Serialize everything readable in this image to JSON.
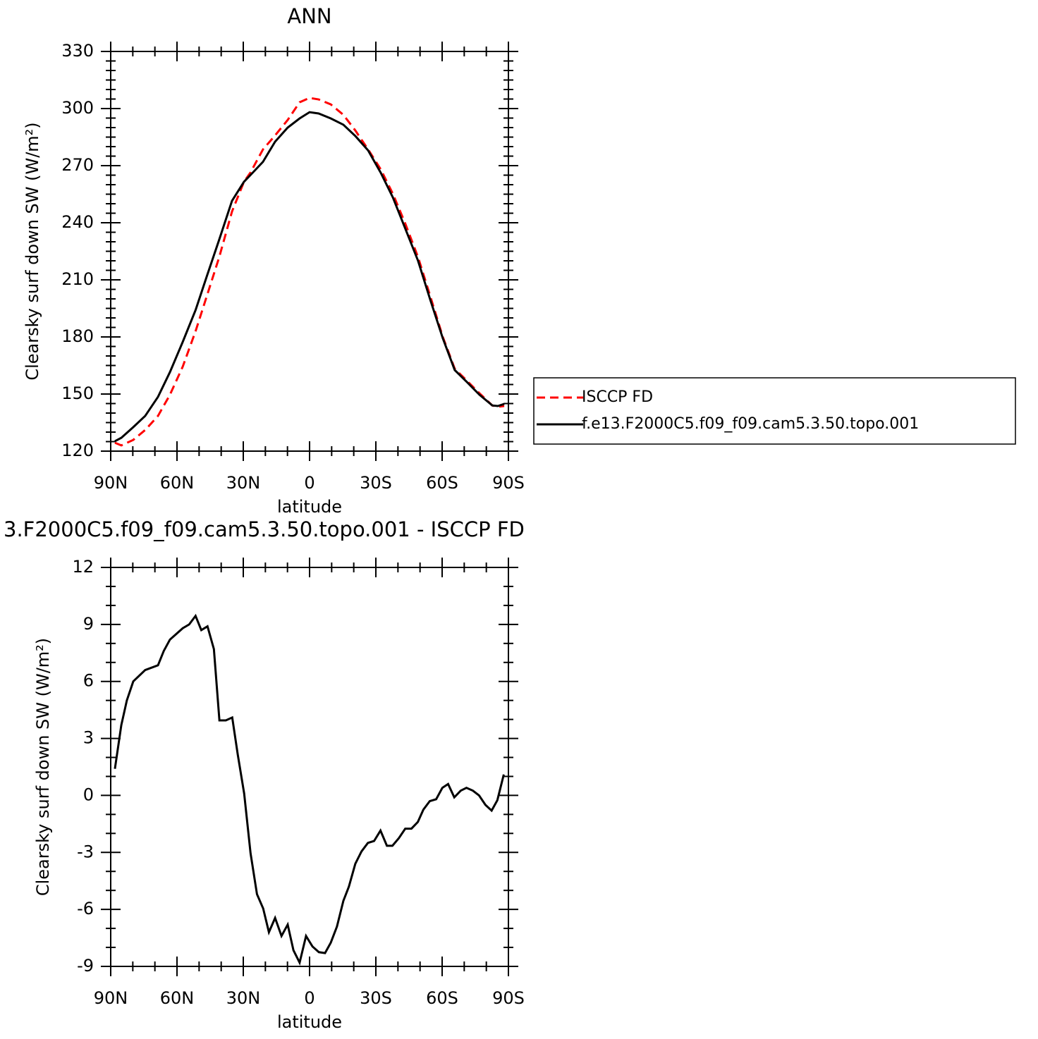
{
  "chart_data": [
    {
      "type": "line",
      "title": "ANN",
      "xlabel": "latitude",
      "ylabel": "Clearsky surf down SW (W/m²)",
      "xlim": [
        90,
        -90
      ],
      "xticks": [
        {
          "value": 90,
          "label": "90N"
        },
        {
          "value": 60,
          "label": "60N"
        },
        {
          "value": 30,
          "label": "30N"
        },
        0,
        {
          "value": -30,
          "label": "30S"
        },
        {
          "value": -60,
          "label": "60S"
        },
        {
          "value": -90,
          "label": "90S"
        }
      ],
      "ylim": [
        120,
        330
      ],
      "yticks": [
        120,
        150,
        180,
        210,
        240,
        270,
        300,
        330
      ],
      "legend": "right",
      "x": [
        88.1,
        85.2,
        79.8,
        74.4,
        68.6,
        63.2,
        57.4,
        51.6,
        46.3,
        40.9,
        35.1,
        29.7,
        26.8,
        21.1,
        15.6,
        9.9,
        4.5,
        0,
        -4.1,
        -9.6,
        -15.3,
        -20.7,
        -26.5,
        -32.2,
        -37.7,
        -43.4,
        -49.1,
        -54.6,
        -60.3,
        -65.7,
        -71.2,
        -76.9,
        -82.7,
        -85.2,
        -88.1
      ],
      "series": [
        {
          "name": "ISCCP FD",
          "color": "#ff0000",
          "dashed": true,
          "values": [
            124.4,
            123,
            125.9,
            131.1,
            138.5,
            149.6,
            164.4,
            183,
            202.2,
            221.9,
            245.9,
            261.5,
            266.3,
            278.5,
            285.9,
            294,
            303.3,
            305.6,
            304.8,
            302.2,
            296.7,
            288.5,
            278.5,
            268.1,
            255.2,
            239.3,
            221.9,
            201.5,
            180,
            163.3,
            157,
            150.4,
            144,
            143.3,
            143.7
          ]
        },
        {
          "name": "f.e13.F2000C5.f09_f09.cam5.3.50.topo.001",
          "color": "#000000",
          "dashed": false,
          "values": [
            125.2,
            127,
            132.6,
            138.5,
            148.5,
            161.5,
            177.4,
            194.1,
            212.6,
            231.1,
            251.5,
            261.5,
            265,
            272,
            282.6,
            290,
            294.8,
            298.1,
            297.4,
            294.8,
            291.5,
            285.6,
            278,
            266.3,
            253.3,
            236.7,
            220,
            199.6,
            179.3,
            162.6,
            156.3,
            149.6,
            144,
            143.7,
            144.8
          ]
        }
      ]
    },
    {
      "type": "line",
      "title": "3.F2000C5.f09_f09.cam5.3.50.topo.001 - ISCCP FD",
      "xlabel": "latitude",
      "ylabel": "Clearsky surf down SW (W/m²)",
      "xlim": [
        90,
        -90
      ],
      "xticks": [
        {
          "value": 90,
          "label": "90N"
        },
        {
          "value": 60,
          "label": "60N"
        },
        {
          "value": 30,
          "label": "30N"
        },
        0,
        {
          "value": -30,
          "label": "30S"
        },
        {
          "value": -60,
          "label": "60S"
        },
        {
          "value": -90,
          "label": "90S"
        }
      ],
      "ylim": [
        -9,
        12
      ],
      "yticks": [
        -9,
        -6,
        -3,
        0,
        3,
        6,
        9,
        12
      ],
      "x": [
        88.1,
        85.2,
        82.7,
        79.8,
        74.4,
        68.6,
        66,
        63.2,
        57.4,
        54.5,
        51.6,
        49,
        46.2,
        43.3,
        40.8,
        37.9,
        35,
        32.5,
        29.6,
        26.7,
        23.8,
        21,
        18.4,
        15.6,
        12.7,
        9.9,
        7.3,
        4.5,
        1.6,
        -1.3,
        -4.2,
        -7,
        -9.6,
        -12.4,
        -15.3,
        -17.8,
        -20.7,
        -23.5,
        -26.4,
        -29.2,
        -32.1,
        -35,
        -37.5,
        -40.4,
        -43.3,
        -46.1,
        -49,
        -51.5,
        -54.4,
        -57.3,
        -60.1,
        -62.7,
        -65.5,
        -68.4,
        -71,
        -73.9,
        -76.7,
        -79.6,
        -82.4,
        -85,
        -87.9
      ],
      "series": [
        {
          "color": "#000000",
          "dashed": false,
          "values": [
            1.4,
            3.7,
            5,
            6,
            6.6,
            6.85,
            7.6,
            8.2,
            8.8,
            9,
            9.45,
            8.7,
            8.9,
            7.7,
            3.95,
            3.95,
            4.1,
            2.15,
            0.1,
            -3.05,
            -5.2,
            -5.95,
            -7.2,
            -6.45,
            -7.4,
            -6.8,
            -8.15,
            -8.8,
            -7.4,
            -7.95,
            -8.25,
            -8.3,
            -7.75,
            -6.9,
            -5.55,
            -4.8,
            -3.6,
            -2.95,
            -2.5,
            -2.4,
            -1.85,
            -2.65,
            -2.65,
            -2.25,
            -1.75,
            -1.75,
            -1.4,
            -0.75,
            -0.3,
            -0.2,
            0.4,
            0.6,
            -0.1,
            0.25,
            0.4,
            0.25,
            0,
            -0.5,
            -0.8,
            -0.25,
            1.1
          ]
        }
      ]
    }
  ]
}
